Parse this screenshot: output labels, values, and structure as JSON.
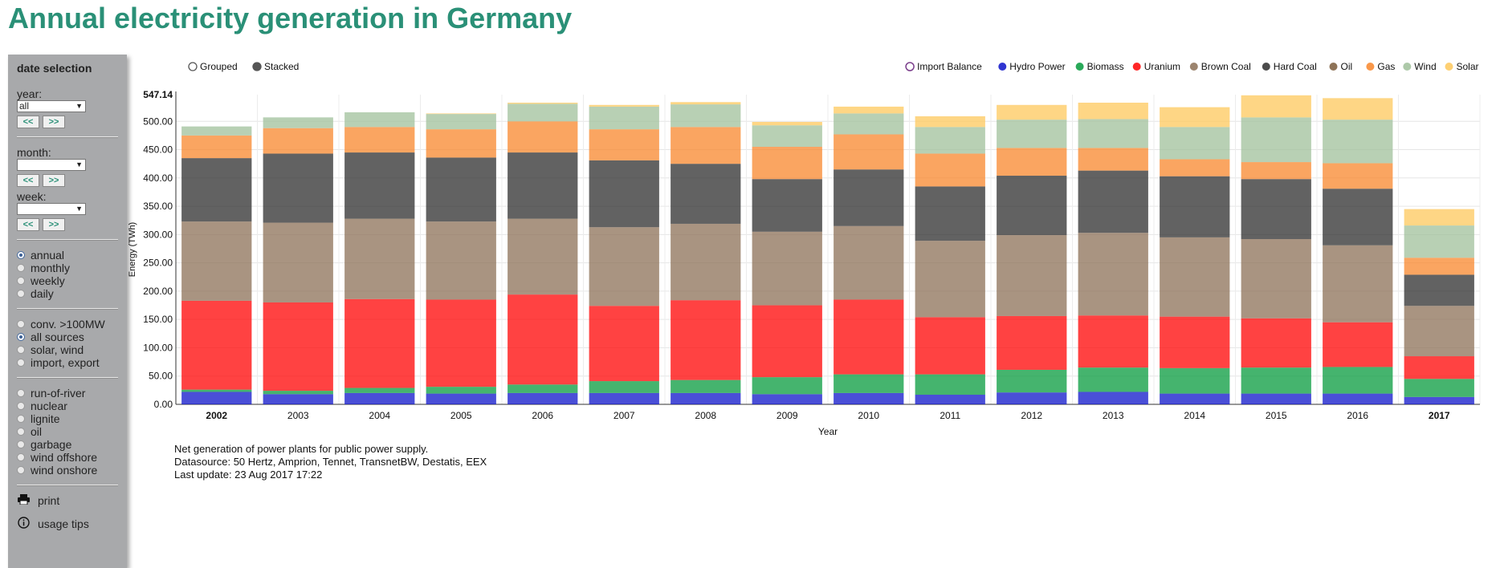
{
  "page": {
    "title": "Annual electricity generation in Germany"
  },
  "sidebar": {
    "heading": "date selection",
    "year_label": "year:",
    "year_value": "all",
    "month_label": "month:",
    "month_value": "",
    "week_label": "week:",
    "week_value": "",
    "prev_label": "<<",
    "next_label": ">>",
    "interval_options": [
      {
        "label": "annual",
        "selected": true
      },
      {
        "label": "monthly",
        "selected": false
      },
      {
        "label": "weekly",
        "selected": false
      },
      {
        "label": "daily",
        "selected": false
      }
    ],
    "source_options": [
      {
        "label": "conv. >100MW",
        "selected": false
      },
      {
        "label": "all sources",
        "selected": true
      },
      {
        "label": "solar, wind",
        "selected": false
      },
      {
        "label": "import, export",
        "selected": false
      }
    ],
    "type_options": [
      {
        "label": "run-of-river",
        "selected": false
      },
      {
        "label": "nuclear",
        "selected": false
      },
      {
        "label": "lignite",
        "selected": false
      },
      {
        "label": "oil",
        "selected": false
      },
      {
        "label": "garbage",
        "selected": false
      },
      {
        "label": "wind offshore",
        "selected": false
      },
      {
        "label": "wind onshore",
        "selected": false
      }
    ],
    "print_label": "print",
    "print_icon": "printer-icon",
    "tips_label": "usage tips",
    "tips_icon": "info-icon"
  },
  "notes": [
    "Net generation of power plants for public power supply.",
    "Datasource: 50 Hertz, Amprion, Tennet, TransnetBW, Destatis, EEX",
    "Last update: 23 Aug 2017 17:22"
  ],
  "chart_data": {
    "type": "bar",
    "mode_options": [
      {
        "label": "Grouped",
        "selected": false
      },
      {
        "label": "Stacked",
        "selected": true
      }
    ],
    "xlabel": "Year",
    "ylabel": "Energy (TWh)",
    "ylim": [
      0,
      547.14
    ],
    "ymax_label": "547.14",
    "yticks": [
      0,
      50,
      100,
      150,
      200,
      250,
      300,
      350,
      400,
      450,
      500
    ],
    "ytick_labels": [
      "0.00",
      "50.00",
      "100.00",
      "150.00",
      "200.00",
      "250.00",
      "300.00",
      "350.00",
      "400.00",
      "450.00",
      "500.00"
    ],
    "grid": true,
    "legend_position": "top-right",
    "categories": [
      "2002",
      "2003",
      "2004",
      "2005",
      "2006",
      "2007",
      "2008",
      "2009",
      "2010",
      "2011",
      "2012",
      "2013",
      "2014",
      "2015",
      "2016",
      "2017"
    ],
    "bold_categories": [
      "2002",
      "2017"
    ],
    "series": [
      {
        "name": "Import Balance",
        "color": "#ffffff",
        "stroke": "#7b3f8c",
        "values": [
          0,
          0,
          0,
          0,
          0,
          0,
          0,
          0,
          0,
          0,
          0,
          0,
          0,
          0,
          0,
          0
        ]
      },
      {
        "name": "Hydro Power",
        "color": "#0b11c9",
        "values": [
          22,
          18,
          20,
          19,
          20,
          20,
          20,
          18,
          20,
          17,
          21,
          22,
          19,
          19,
          19,
          13
        ]
      },
      {
        "name": "Biomass",
        "color": "#049a3c",
        "values": [
          4,
          6,
          9,
          12,
          15,
          21,
          23,
          30,
          33,
          36,
          40,
          43,
          45,
          46,
          47,
          32
        ]
      },
      {
        "name": "Uranium",
        "color": "#ff0000",
        "values": [
          157,
          156,
          157,
          154,
          159,
          133,
          141,
          127,
          132,
          101,
          95,
          92,
          91,
          87,
          79,
          40
        ]
      },
      {
        "name": "Brown Coal",
        "color": "#8b6e55",
        "values": [
          140,
          141,
          142,
          138,
          134,
          139,
          135,
          130,
          130,
          135,
          143,
          146,
          140,
          140,
          136,
          89
        ]
      },
      {
        "name": "Hard Coal",
        "color": "#2b2b2b",
        "values": [
          112,
          122,
          117,
          113,
          117,
          118,
          106,
          93,
          100,
          96,
          105,
          110,
          108,
          106,
          100,
          55
        ]
      },
      {
        "name": "Oil",
        "color": "#7a5a3a",
        "values": [
          0,
          0,
          0,
          0,
          0,
          0,
          0,
          0,
          0,
          0,
          0,
          0,
          0,
          0,
          0,
          0
        ]
      },
      {
        "name": "Gas",
        "color": "#f8862a",
        "values": [
          40,
          45,
          45,
          50,
          55,
          55,
          65,
          57,
          62,
          58,
          49,
          40,
          30,
          30,
          45,
          30
        ]
      },
      {
        "name": "Wind",
        "color": "#9fbf9a",
        "values": [
          16,
          19,
          26,
          27,
          31,
          40,
          40,
          38,
          37,
          47,
          50,
          51,
          57,
          79,
          77,
          57
        ]
      },
      {
        "name": "Solar",
        "color": "#fec85a",
        "values": [
          0,
          0,
          0,
          1,
          2,
          3,
          4,
          6,
          12,
          19,
          26,
          29,
          35,
          39,
          38,
          29
        ]
      }
    ]
  }
}
